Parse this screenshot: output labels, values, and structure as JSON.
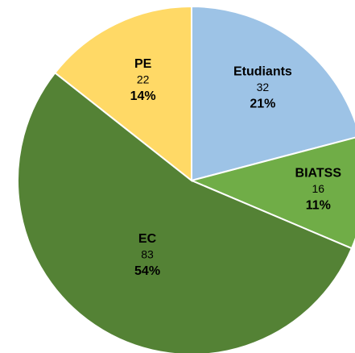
{
  "chart_data": {
    "type": "pie",
    "categories": [
      "Etudiants",
      "BIATSS",
      "EC",
      "PE"
    ],
    "values": [
      32,
      16,
      83,
      22
    ],
    "percent_labels": [
      "21%",
      "11%",
      "54%",
      "14%"
    ],
    "colors": [
      "#9dc3e6",
      "#70ad47",
      "#548235",
      "#ffd966"
    ]
  }
}
